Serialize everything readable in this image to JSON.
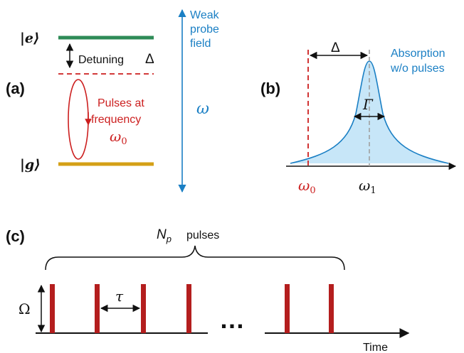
{
  "colors": {
    "excited_level": "#2e8b57",
    "ground_level": "#d4a017",
    "red": "#cc1f1f",
    "dark_red": "#b41e1e",
    "blue": "#1a7fc4",
    "gray_dash": "#a0a0a0",
    "black": "#111111",
    "fill_blue": "#c7e6f8"
  },
  "panel_a": {
    "label": "(a)",
    "excited_state": "|e⟩",
    "ground_state": "|g⟩",
    "detuning_label": "Detuning",
    "detuning_symbol": "Δ",
    "pulses_line1": "Pulses at",
    "pulses_line2": "frequency",
    "pulses_freq": "ω0",
    "probe_line1": "Weak",
    "probe_line2": "probe",
    "probe_line3": "field",
    "probe_symbol": "ω"
  },
  "panel_b": {
    "label": "(b)",
    "delta_symbol": "Δ",
    "gamma_symbol": "Γ",
    "absorption_line1": "Absorption",
    "absorption_line2": "w/o pulses",
    "omega0": "ω0",
    "omega1": "ω1"
  },
  "panel_c": {
    "label": "(c)",
    "np_symbol": "N",
    "np_subscript": "p",
    "pulses_word": "pulses",
    "omega_symbol": "Ω",
    "tau_symbol": "τ",
    "ellipsis": "…",
    "time_label": "Time"
  }
}
